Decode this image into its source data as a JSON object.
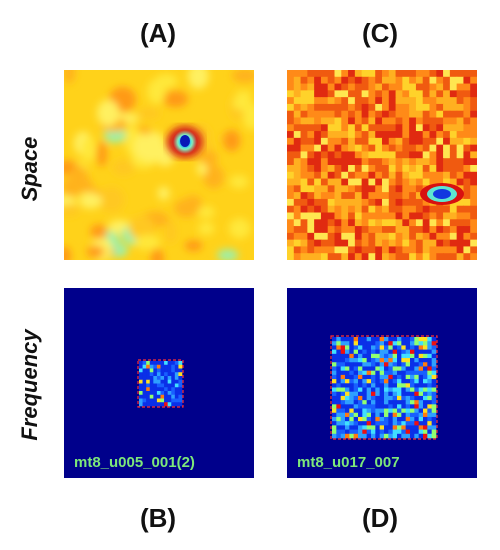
{
  "panels": {
    "a": {
      "label": "(A)"
    },
    "b": {
      "label": "(B)",
      "code": "mt8_u005_001(2)"
    },
    "c": {
      "label": "(C)"
    },
    "d": {
      "label": "(D)",
      "code": "mt8_u017_007"
    }
  },
  "rows": {
    "space": "Space",
    "frequency": "Frequency"
  },
  "colors": {
    "freq_background": "#00008b",
    "box_outline": "#ff3030",
    "code_text": "#7de87a"
  }
}
